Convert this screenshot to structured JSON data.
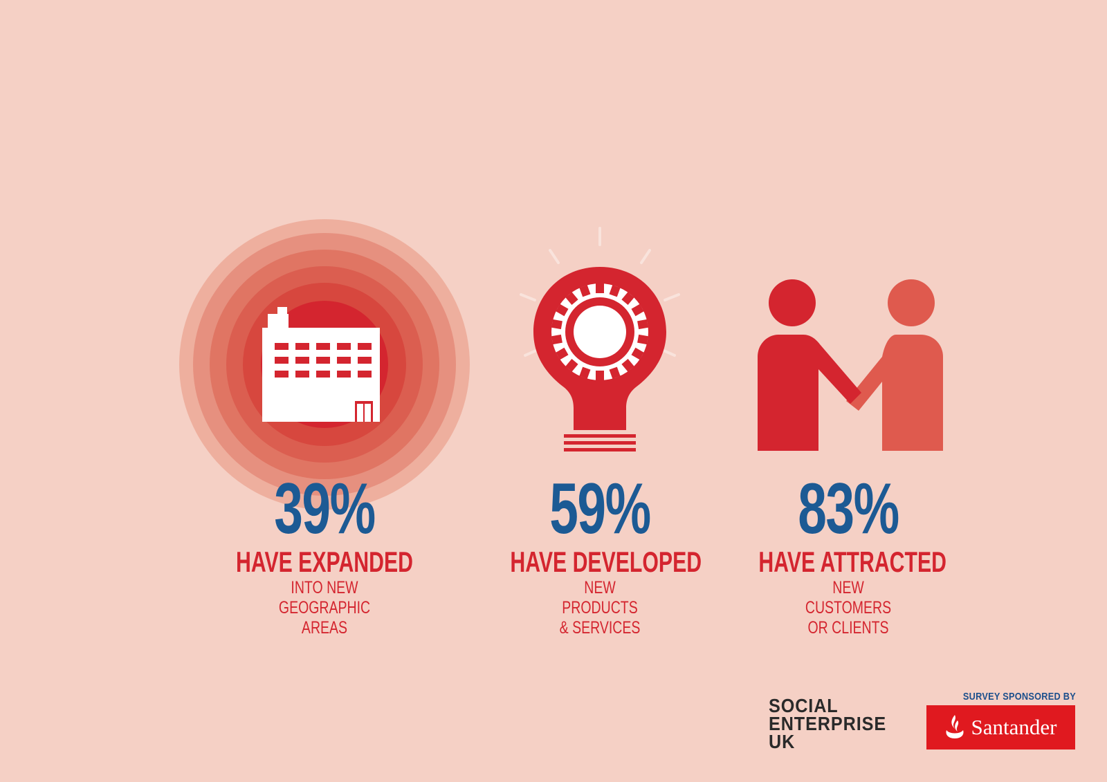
{
  "stats": [
    {
      "percent": "39%",
      "value": 39,
      "headline": "HAVE EXPANDED",
      "sub": [
        "INTO NEW",
        "GEOGRAPHIC",
        "AREAS"
      ],
      "icon": "factory-building-icon"
    },
    {
      "percent": "59%",
      "value": 59,
      "headline": "HAVE DEVELOPED",
      "sub": [
        "NEW",
        "PRODUCTS",
        "& SERVICES"
      ],
      "icon": "lightbulb-gear-icon"
    },
    {
      "percent": "83%",
      "value": 83,
      "headline": "HAVE ATTRACTED",
      "sub": [
        "NEW",
        "CUSTOMERS",
        "OR CLIENTS"
      ],
      "icon": "handshake-people-icon"
    }
  ],
  "footer": {
    "seuk_logo": [
      "SOCIAL",
      "ENTERPRISE",
      "UK"
    ],
    "sponsor_label": "SURVEY SPONSORED BY",
    "sponsor_name": "Santander",
    "sponsor_icon": "santander-flame-icon"
  },
  "colors": {
    "background": "#f5d0c5",
    "accent_red": "#d4252f",
    "accent_coral": "#df5a4e",
    "percent_blue": "#1c5a94",
    "santander_red": "#e0191f"
  }
}
